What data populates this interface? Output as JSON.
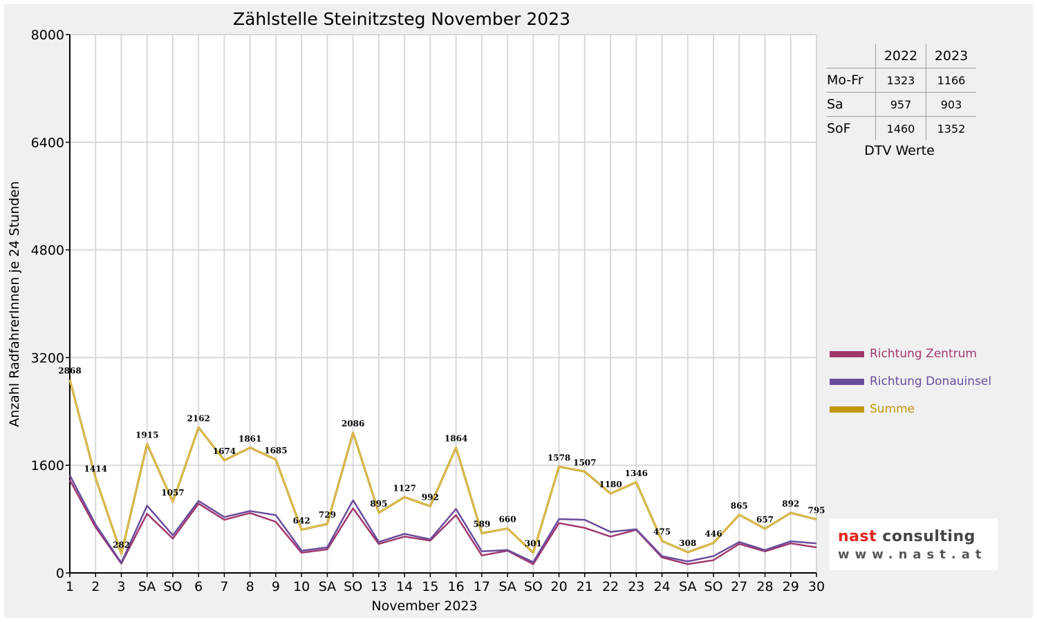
{
  "chart_data": {
    "type": "line",
    "title": "Zählstelle Steinitzsteg November 2023",
    "xlabel": "November 2023",
    "ylabel": "Anzahl RadfahrerInnen je 24 Stunden",
    "ylim": [
      0,
      8000
    ],
    "yticks": [
      "0",
      "1600",
      "3200",
      "4800",
      "6400",
      "8000"
    ],
    "grid": true,
    "legend_position": "right",
    "categories": [
      "1",
      "2",
      "3",
      "SA",
      "SO",
      "6",
      "7",
      "8",
      "9",
      "10",
      "SA",
      "SO",
      "13",
      "14",
      "15",
      "16",
      "17",
      "SA",
      "SO",
      "20",
      "21",
      "22",
      "23",
      "24",
      "SA",
      "SO",
      "27",
      "28",
      "29",
      "30"
    ],
    "highlight_categories": [
      0,
      4,
      11,
      18,
      25
    ],
    "series": [
      {
        "name": "Richtung Zentrum",
        "color": "#a0386c",
        "values": [
          1380,
          680,
          140,
          880,
          510,
          1030,
          790,
          890,
          760,
          300,
          350,
          960,
          430,
          540,
          480,
          860,
          260,
          330,
          130,
          740,
          670,
          540,
          640,
          230,
          130,
          190,
          430,
          320,
          440,
          380
        ]
      },
      {
        "name": "Richtung Donauinsel",
        "color": "#6a4c9c",
        "values": [
          1450,
          720,
          150,
          1000,
          560,
          1070,
          830,
          920,
          860,
          330,
          380,
          1080,
          460,
          580,
          500,
          950,
          320,
          340,
          160,
          800,
          790,
          610,
          650,
          250,
          170,
          250,
          460,
          340,
          470,
          440
        ]
      },
      {
        "name": "Summe",
        "color": "#c0960c",
        "values": [
          2868,
          1414,
          282,
          1915,
          1057,
          2162,
          1674,
          1861,
          1685,
          642,
          729,
          2086,
          895,
          1127,
          992,
          1864,
          589,
          660,
          301,
          1578,
          1507,
          1180,
          1346,
          475,
          308,
          446,
          865,
          657,
          892,
          795
        ],
        "labels": [
          "2868",
          "1414",
          "282",
          "1915",
          "1057",
          "2162",
          "1674",
          "1861",
          "1685",
          "642",
          "729",
          "2086",
          "895",
          "1127",
          "992",
          "1864",
          "589",
          "660",
          "301",
          "1578",
          "1507",
          "1180",
          "1346",
          "475",
          "308",
          "446",
          "865",
          "657",
          "892",
          "795"
        ]
      }
    ],
    "colors": {
      "highlight_tick": "#ff0000",
      "grid": "#d8d8d8"
    }
  },
  "dtv_table": {
    "years": [
      "2022",
      "2023"
    ],
    "rows": [
      {
        "label": "Mo-Fr",
        "v2022": "1323",
        "v2023": "1166"
      },
      {
        "label": "Sa",
        "v2022": "957",
        "v2023": "903"
      },
      {
        "label": "SoF",
        "v2022": "1460",
        "v2023": "1352"
      }
    ],
    "caption": "DTV Werte"
  },
  "logo": {
    "word1": "nast",
    "word2": " consulting",
    "url": "www.nast.at"
  }
}
